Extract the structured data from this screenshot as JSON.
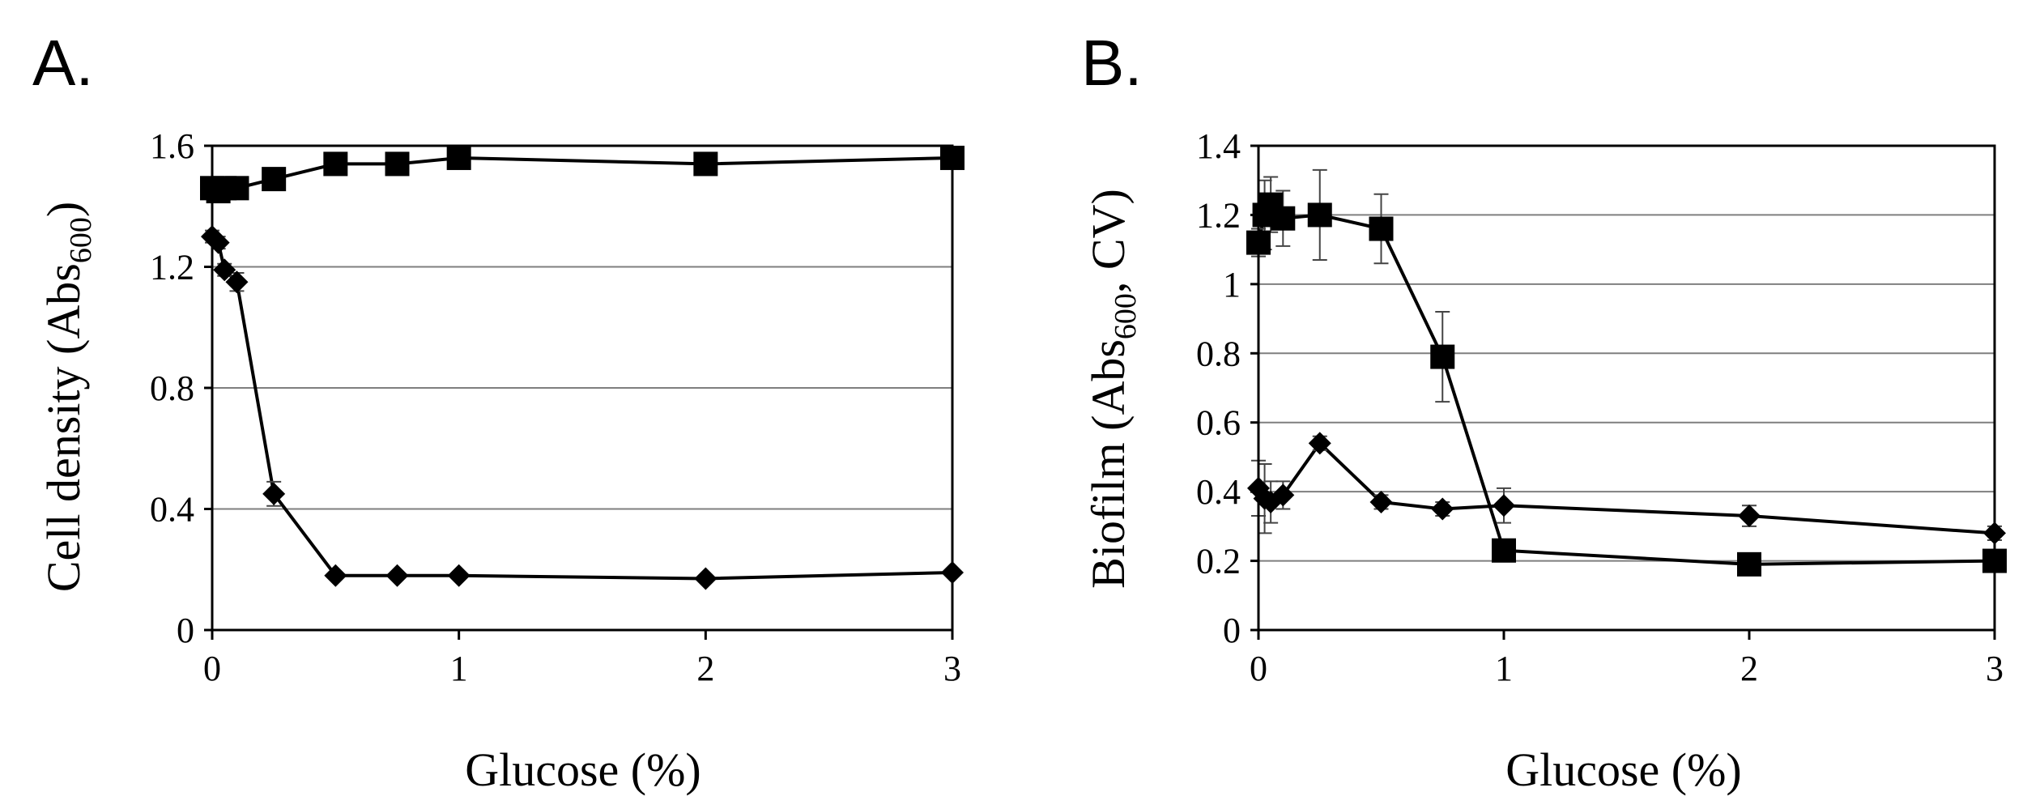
{
  "chart_data": [
    {
      "type": "line",
      "panel_label": "A.",
      "xlabel": "Glucose (%)",
      "ylabel": {
        "main": "Cell density (Abs",
        "sub": "600",
        "tail": ")"
      },
      "xlim": [
        0,
        3
      ],
      "ylim": [
        0,
        1.6
      ],
      "xticks": [
        0,
        1,
        2,
        3
      ],
      "xtick_labels": [
        "0",
        "1",
        "2",
        "3"
      ],
      "yticks": [
        0,
        0.4,
        0.8,
        1.2,
        1.6
      ],
      "ytick_labels": [
        "0",
        "0.4",
        "0.8",
        "1.2",
        "1.6"
      ],
      "grid": true,
      "series": [
        {
          "name": "square",
          "marker": "square",
          "x": [
            0,
            0.025,
            0.05,
            0.1,
            0.25,
            0.5,
            0.75,
            1,
            2,
            3
          ],
          "y": [
            1.46,
            1.45,
            1.46,
            1.46,
            1.49,
            1.54,
            1.54,
            1.56,
            1.54,
            1.56
          ],
          "err": [
            0.01,
            0.01,
            0.01,
            0.01,
            0.01,
            0.01,
            0.01,
            0.01,
            0.01,
            0.01
          ]
        },
        {
          "name": "diamond",
          "marker": "diamond",
          "x": [
            0,
            0.025,
            0.05,
            0.1,
            0.25,
            0.5,
            0.75,
            1,
            2,
            3
          ],
          "y": [
            1.3,
            1.28,
            1.19,
            1.15,
            0.45,
            0.18,
            0.18,
            0.18,
            0.17,
            0.19
          ],
          "err": [
            0.02,
            0.02,
            0.02,
            0.03,
            0.04,
            0.01,
            0.01,
            0.01,
            0.01,
            0.01
          ]
        }
      ]
    },
    {
      "type": "line",
      "panel_label": "B.",
      "xlabel": "Glucose (%)",
      "ylabel": {
        "main": "Biofilm (Abs",
        "sub": "600",
        "tail": ", CV)"
      },
      "xlim": [
        0,
        3
      ],
      "ylim": [
        0,
        1.4
      ],
      "xticks": [
        0,
        1,
        2,
        3
      ],
      "xtick_labels": [
        "0",
        "1",
        "2",
        "3"
      ],
      "yticks": [
        0,
        0.2,
        0.4,
        0.6,
        0.8,
        1,
        1.2,
        1.4
      ],
      "ytick_labels": [
        "0",
        "0.2",
        "0.4",
        "0.6",
        "0.8",
        "1",
        "1.2",
        "1.4"
      ],
      "grid": true,
      "series": [
        {
          "name": "square",
          "marker": "square",
          "x": [
            0,
            0.025,
            0.05,
            0.1,
            0.25,
            0.5,
            0.75,
            1,
            2,
            3
          ],
          "y": [
            1.12,
            1.2,
            1.23,
            1.19,
            1.2,
            1.16,
            0.79,
            0.23,
            0.19,
            0.2
          ],
          "err": [
            0.04,
            0.1,
            0.08,
            0.08,
            0.13,
            0.1,
            0.13,
            0.02,
            0.02,
            0.02
          ]
        },
        {
          "name": "diamond",
          "marker": "diamond",
          "x": [
            0,
            0.025,
            0.05,
            0.1,
            0.25,
            0.5,
            0.75,
            1,
            2,
            3
          ],
          "y": [
            0.41,
            0.38,
            0.37,
            0.39,
            0.54,
            0.37,
            0.35,
            0.36,
            0.33,
            0.28
          ],
          "err": [
            0.08,
            0.1,
            0.06,
            0.04,
            0.02,
            0.02,
            0.02,
            0.05,
            0.03,
            0.02
          ]
        }
      ]
    }
  ]
}
